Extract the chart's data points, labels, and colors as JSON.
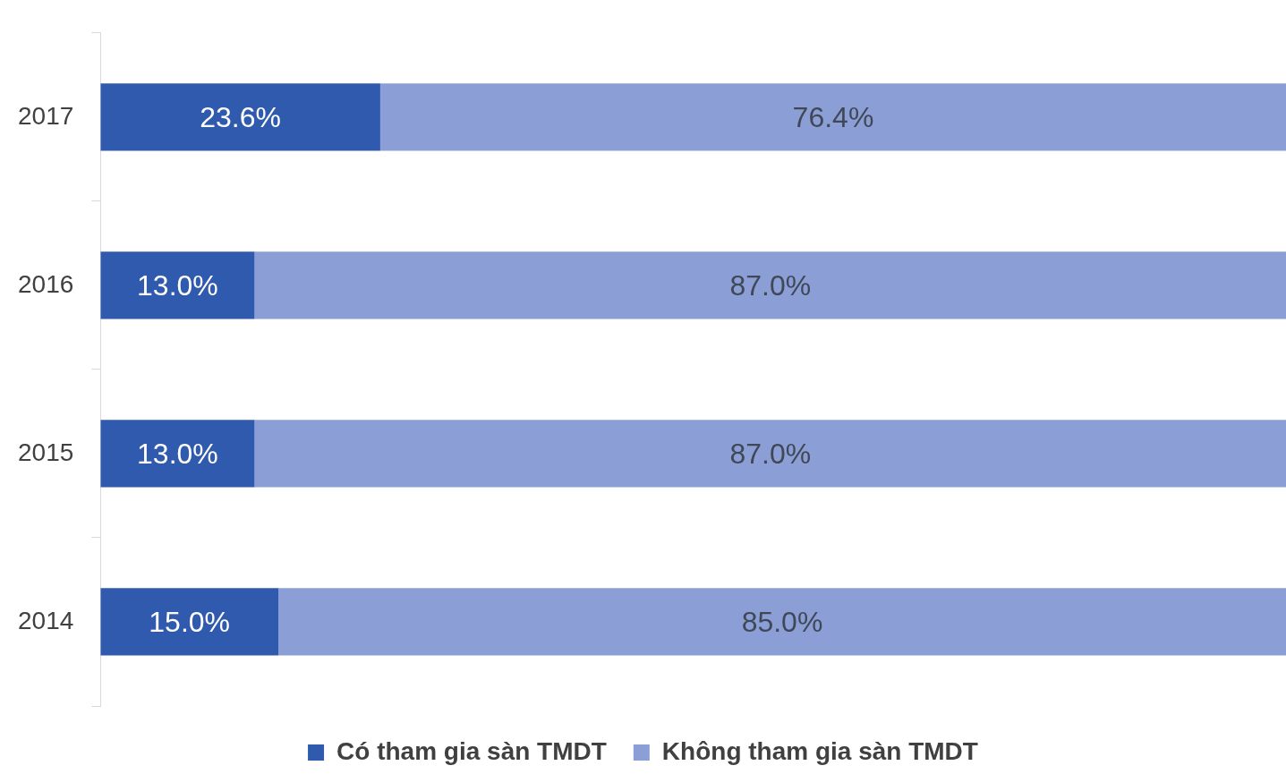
{
  "chart_data": {
    "type": "bar",
    "orientation": "horizontal",
    "stacked": true,
    "categories": [
      "2017",
      "2016",
      "2015",
      "2014"
    ],
    "series": [
      {
        "name": "Có tham gia sàn TMDT",
        "color": "#2f5aad",
        "values": [
          23.6,
          13.0,
          13.0,
          15.0
        ],
        "value_labels": [
          "23.6%",
          "13.0%",
          "13.0%",
          "15.0%"
        ]
      },
      {
        "name": "Không tham gia sàn TMDT",
        "color": "#8b9fd6",
        "values": [
          76.4,
          87.0,
          87.0,
          85.0
        ],
        "value_labels": [
          "76.4%",
          "87.0%",
          "87.0%",
          "85.0%"
        ]
      }
    ],
    "tick_labels": "y",
    "grid": false,
    "legend": "bottom"
  }
}
